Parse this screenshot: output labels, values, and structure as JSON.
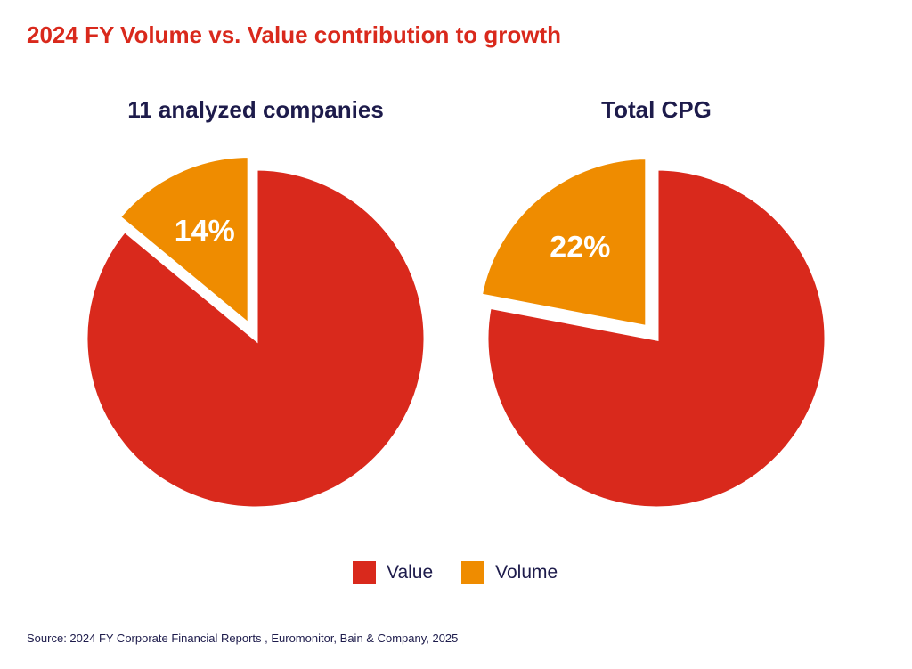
{
  "title": "2024 FY Volume vs. Value contribution to growth",
  "colors": {
    "title": "#d9291c",
    "text": "#1d1b4b",
    "value": "#d9291c",
    "volume": "#ef8c00"
  },
  "legend": [
    {
      "label": "Value",
      "color": "#d9291c"
    },
    {
      "label": "Volume",
      "color": "#ef8c00"
    }
  ],
  "source": "Source: 2024 FY Corporate Financial Reports , Euromonitor, Bain & Company, 2025",
  "chart_data": [
    {
      "type": "pie",
      "title": "11 analyzed companies",
      "slices": [
        {
          "name": "Volume",
          "value": 14,
          "label": "14%"
        },
        {
          "name": "Value",
          "value": 86,
          "label": ""
        }
      ]
    },
    {
      "type": "pie",
      "title": "Total CPG",
      "slices": [
        {
          "name": "Volume",
          "value": 22,
          "label": "22%"
        },
        {
          "name": "Value",
          "value": 78,
          "label": ""
        }
      ]
    }
  ]
}
